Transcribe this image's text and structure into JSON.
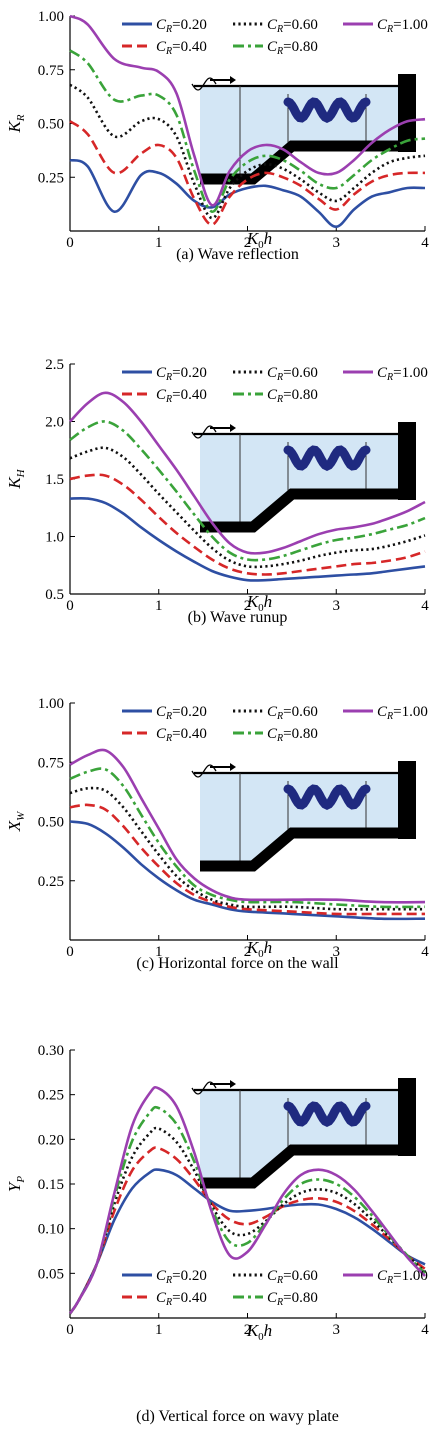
{
  "colors": {
    "s020": "#2e4fa3",
    "s040": "#d62728",
    "s060": "#111111",
    "s080": "#3aa33a",
    "s100": "#9b3fb0",
    "water": "#d3e6f5",
    "wave": "#1f2a80"
  },
  "chart_data": [
    {
      "type": "line",
      "caption": "(a) Wave reflection",
      "xlabel": "K₀h",
      "ylabel": "K_R",
      "xlim": [
        0,
        4
      ],
      "ylim": [
        0,
        1.0
      ],
      "xticks": [
        "0",
        "1",
        "2",
        "3",
        "4"
      ],
      "yticks": [
        "0.25",
        "0.50",
        "0.75",
        "1.00"
      ],
      "legend_position": "top",
      "series": [
        {
          "name": "C_R=0.20",
          "label": "=0.20",
          "style": "solid",
          "color": "#2e4fa3",
          "x": [
            0,
            0.2,
            0.5,
            0.8,
            1.0,
            1.2,
            1.4,
            1.6,
            1.8,
            2.0,
            2.2,
            2.4,
            2.6,
            2.8,
            3.0,
            3.2,
            3.4,
            3.6,
            3.8,
            4.0
          ],
          "y": [
            0.33,
            0.3,
            0.09,
            0.26,
            0.27,
            0.22,
            0.14,
            0.11,
            0.17,
            0.2,
            0.21,
            0.19,
            0.16,
            0.09,
            0.02,
            0.1,
            0.16,
            0.18,
            0.2,
            0.2
          ]
        },
        {
          "name": "C_R=0.40",
          "label": "=0.40",
          "style": "dash",
          "color": "#d62728",
          "x": [
            0,
            0.2,
            0.5,
            0.8,
            1.0,
            1.2,
            1.4,
            1.6,
            1.8,
            2.0,
            2.2,
            2.4,
            2.6,
            2.8,
            3.0,
            3.2,
            3.4,
            3.6,
            3.8,
            4.0
          ],
          "y": [
            0.51,
            0.45,
            0.27,
            0.36,
            0.4,
            0.34,
            0.15,
            0.03,
            0.16,
            0.24,
            0.27,
            0.25,
            0.21,
            0.15,
            0.1,
            0.17,
            0.23,
            0.26,
            0.27,
            0.27
          ]
        },
        {
          "name": "C_R=0.60",
          "label": "=0.60",
          "style": "dot",
          "color": "#111111",
          "x": [
            0,
            0.2,
            0.5,
            0.8,
            1.0,
            1.2,
            1.4,
            1.6,
            1.8,
            2.0,
            2.2,
            2.4,
            2.6,
            2.8,
            3.0,
            3.2,
            3.4,
            3.6,
            3.8,
            4.0
          ],
          "y": [
            0.68,
            0.62,
            0.44,
            0.51,
            0.52,
            0.44,
            0.22,
            0.06,
            0.2,
            0.28,
            0.31,
            0.29,
            0.24,
            0.18,
            0.14,
            0.2,
            0.27,
            0.32,
            0.34,
            0.35
          ]
        },
        {
          "name": "C_R=0.80",
          "label": "=0.80",
          "style": "dashdot",
          "color": "#3aa33a",
          "x": [
            0,
            0.2,
            0.5,
            0.8,
            1.0,
            1.2,
            1.4,
            1.6,
            1.8,
            2.0,
            2.2,
            2.4,
            2.6,
            2.8,
            3.0,
            3.2,
            3.4,
            3.6,
            3.8,
            4.0
          ],
          "y": [
            0.84,
            0.78,
            0.61,
            0.63,
            0.63,
            0.54,
            0.28,
            0.09,
            0.24,
            0.32,
            0.35,
            0.33,
            0.28,
            0.22,
            0.2,
            0.26,
            0.33,
            0.38,
            0.42,
            0.43
          ]
        },
        {
          "name": "C_R=1.00",
          "label": "=1.00",
          "style": "solid",
          "color": "#9b3fb0",
          "x": [
            0,
            0.2,
            0.5,
            0.8,
            1.0,
            1.2,
            1.4,
            1.6,
            1.8,
            2.0,
            2.2,
            2.4,
            2.6,
            2.8,
            3.0,
            3.2,
            3.4,
            3.6,
            3.8,
            4.0
          ],
          "y": [
            1.0,
            0.96,
            0.8,
            0.76,
            0.74,
            0.64,
            0.35,
            0.12,
            0.28,
            0.37,
            0.4,
            0.38,
            0.32,
            0.27,
            0.27,
            0.33,
            0.41,
            0.47,
            0.51,
            0.52
          ]
        }
      ]
    },
    {
      "type": "line",
      "caption": "(b) Wave runup",
      "xlabel": "K₀h",
      "ylabel": "K_H",
      "xlim": [
        0,
        4
      ],
      "ylim": [
        0.5,
        2.5
      ],
      "xticks": [
        "0",
        "1",
        "2",
        "3",
        "4"
      ],
      "yticks": [
        "0.5",
        "1.0",
        "1.5",
        "2.0",
        "2.5"
      ],
      "legend_position": "top",
      "series": [
        {
          "name": "C_R=0.20",
          "label": "=0.20",
          "style": "solid",
          "color": "#2e4fa3",
          "x": [
            0,
            0.2,
            0.4,
            0.6,
            0.8,
            1.0,
            1.2,
            1.4,
            1.6,
            1.8,
            2.0,
            2.2,
            2.4,
            2.6,
            2.8,
            3.0,
            3.2,
            3.4,
            3.6,
            3.8,
            4.0
          ],
          "y": [
            1.33,
            1.33,
            1.29,
            1.2,
            1.08,
            0.97,
            0.87,
            0.78,
            0.7,
            0.65,
            0.62,
            0.62,
            0.63,
            0.64,
            0.65,
            0.66,
            0.67,
            0.68,
            0.7,
            0.72,
            0.74
          ]
        },
        {
          "name": "C_R=0.40",
          "label": "=0.40",
          "style": "dash",
          "color": "#d62728",
          "x": [
            0,
            0.2,
            0.4,
            0.6,
            0.8,
            1.0,
            1.2,
            1.4,
            1.6,
            1.8,
            2.0,
            2.2,
            2.4,
            2.6,
            2.8,
            3.0,
            3.2,
            3.4,
            3.6,
            3.8,
            4.0
          ],
          "y": [
            1.5,
            1.53,
            1.53,
            1.45,
            1.32,
            1.17,
            1.03,
            0.91,
            0.8,
            0.72,
            0.68,
            0.67,
            0.68,
            0.7,
            0.72,
            0.74,
            0.76,
            0.77,
            0.79,
            0.82,
            0.87
          ]
        },
        {
          "name": "C_R=0.60",
          "label": "=0.60",
          "style": "dot",
          "color": "#111111",
          "x": [
            0,
            0.2,
            0.4,
            0.6,
            0.8,
            1.0,
            1.2,
            1.4,
            1.6,
            1.8,
            2.0,
            2.2,
            2.4,
            2.6,
            2.8,
            3.0,
            3.2,
            3.4,
            3.6,
            3.8,
            4.0
          ],
          "y": [
            1.68,
            1.74,
            1.77,
            1.69,
            1.54,
            1.37,
            1.21,
            1.05,
            0.9,
            0.79,
            0.74,
            0.74,
            0.76,
            0.79,
            0.83,
            0.86,
            0.88,
            0.89,
            0.92,
            0.96,
            1.01
          ]
        },
        {
          "name": "C_R=0.80",
          "label": "=0.80",
          "style": "dashdot",
          "color": "#3aa33a",
          "x": [
            0,
            0.2,
            0.4,
            0.6,
            0.8,
            1.0,
            1.2,
            1.4,
            1.6,
            1.8,
            2.0,
            2.2,
            2.4,
            2.6,
            2.8,
            3.0,
            3.2,
            3.4,
            3.6,
            3.8,
            4.0
          ],
          "y": [
            1.84,
            1.95,
            2.0,
            1.92,
            1.76,
            1.58,
            1.39,
            1.19,
            1.0,
            0.86,
            0.8,
            0.8,
            0.83,
            0.88,
            0.93,
            0.97,
            0.99,
            1.02,
            1.06,
            1.1,
            1.16
          ]
        },
        {
          "name": "C_R=1.00",
          "label": "=1.00",
          "style": "solid",
          "color": "#9b3fb0",
          "x": [
            0,
            0.2,
            0.4,
            0.6,
            0.8,
            1.0,
            1.2,
            1.4,
            1.6,
            1.8,
            2.0,
            2.2,
            2.4,
            2.6,
            2.8,
            3.0,
            3.2,
            3.4,
            3.6,
            3.8,
            4.0
          ],
          "y": [
            2.0,
            2.16,
            2.25,
            2.17,
            2.0,
            1.79,
            1.58,
            1.35,
            1.12,
            0.94,
            0.86,
            0.86,
            0.9,
            0.96,
            1.02,
            1.06,
            1.08,
            1.11,
            1.16,
            1.22,
            1.3
          ]
        }
      ]
    },
    {
      "type": "line",
      "caption": "(c) Horizontal force on the wall",
      "xlabel": "K₀h",
      "ylabel": "X_W",
      "xlim": [
        0,
        4
      ],
      "ylim": [
        0,
        1.0
      ],
      "xticks": [
        "0",
        "1",
        "2",
        "3",
        "4"
      ],
      "yticks": [
        "0.25",
        "0.50",
        "0.75",
        "1.00"
      ],
      "legend_position": "top",
      "series": [
        {
          "name": "C_R=0.20",
          "label": "=0.20",
          "style": "solid",
          "color": "#2e4fa3",
          "x": [
            0,
            0.2,
            0.4,
            0.6,
            0.8,
            1.0,
            1.2,
            1.4,
            1.6,
            1.8,
            2.0,
            2.5,
            3.0,
            3.5,
            4.0
          ],
          "y": [
            0.5,
            0.49,
            0.45,
            0.39,
            0.32,
            0.26,
            0.21,
            0.17,
            0.15,
            0.13,
            0.12,
            0.11,
            0.1,
            0.09,
            0.09
          ]
        },
        {
          "name": "C_R=0.40",
          "label": "=0.40",
          "style": "dash",
          "color": "#d62728",
          "x": [
            0,
            0.2,
            0.4,
            0.6,
            0.8,
            1.0,
            1.2,
            1.4,
            1.6,
            1.8,
            2.0,
            2.5,
            3.0,
            3.5,
            4.0
          ],
          "y": [
            0.56,
            0.57,
            0.55,
            0.48,
            0.39,
            0.31,
            0.24,
            0.19,
            0.16,
            0.14,
            0.13,
            0.12,
            0.11,
            0.11,
            0.11
          ]
        },
        {
          "name": "C_R=0.60",
          "label": "=0.60",
          "style": "dot",
          "color": "#111111",
          "x": [
            0,
            0.2,
            0.4,
            0.6,
            0.8,
            1.0,
            1.2,
            1.4,
            1.6,
            1.8,
            2.0,
            2.5,
            3.0,
            3.5,
            4.0
          ],
          "y": [
            0.62,
            0.64,
            0.63,
            0.56,
            0.46,
            0.36,
            0.27,
            0.21,
            0.17,
            0.15,
            0.14,
            0.14,
            0.13,
            0.13,
            0.13
          ]
        },
        {
          "name": "C_R=0.80",
          "label": "=0.80",
          "style": "dashdot",
          "color": "#3aa33a",
          "x": [
            0,
            0.2,
            0.4,
            0.6,
            0.8,
            1.0,
            1.2,
            1.4,
            1.6,
            1.8,
            2.0,
            2.5,
            3.0,
            3.5,
            4.0
          ],
          "y": [
            0.68,
            0.71,
            0.72,
            0.65,
            0.53,
            0.41,
            0.31,
            0.23,
            0.19,
            0.17,
            0.16,
            0.16,
            0.15,
            0.14,
            0.14
          ]
        },
        {
          "name": "C_R=1.00",
          "label": "=1.00",
          "style": "solid",
          "color": "#9b3fb0",
          "x": [
            0,
            0.2,
            0.4,
            0.6,
            0.8,
            1.0,
            1.2,
            1.4,
            1.6,
            1.8,
            2.0,
            2.5,
            3.0,
            3.5,
            4.0
          ],
          "y": [
            0.74,
            0.78,
            0.8,
            0.73,
            0.6,
            0.47,
            0.34,
            0.26,
            0.21,
            0.18,
            0.17,
            0.17,
            0.17,
            0.16,
            0.16
          ]
        }
      ]
    },
    {
      "type": "line",
      "caption": "(d) Vertical force on wavy plate",
      "xlabel": "K₀h",
      "ylabel": "Y_P",
      "xlim": [
        0,
        4
      ],
      "ylim": [
        0,
        0.3
      ],
      "xticks": [
        "0",
        "1",
        "2",
        "3",
        "4"
      ],
      "yticks": [
        "0.05",
        "0.10",
        "0.15",
        "0.20",
        "0.25",
        "0.30"
      ],
      "legend_position": "bottom",
      "series": [
        {
          "name": "C_R=0.20",
          "label": "=0.20",
          "style": "solid",
          "color": "#2e4fa3",
          "x": [
            0,
            0.1,
            0.3,
            0.5,
            0.7,
            0.9,
            1.0,
            1.2,
            1.4,
            1.6,
            1.8,
            2.0,
            2.2,
            2.4,
            2.6,
            2.8,
            3.0,
            3.2,
            3.4,
            3.6,
            3.8,
            4.0
          ],
          "y": [
            0.005,
            0.02,
            0.06,
            0.11,
            0.145,
            0.163,
            0.166,
            0.16,
            0.145,
            0.13,
            0.12,
            0.12,
            0.122,
            0.125,
            0.127,
            0.127,
            0.122,
            0.113,
            0.1,
            0.085,
            0.07,
            0.06
          ]
        },
        {
          "name": "C_R=0.40",
          "label": "=0.40",
          "style": "dash",
          "color": "#d62728",
          "x": [
            0,
            0.1,
            0.3,
            0.5,
            0.7,
            0.9,
            1.0,
            1.2,
            1.4,
            1.6,
            1.8,
            2.0,
            2.2,
            2.4,
            2.6,
            2.8,
            3.0,
            3.2,
            3.4,
            3.6,
            3.8,
            4.0
          ],
          "y": [
            0.005,
            0.02,
            0.06,
            0.12,
            0.165,
            0.187,
            0.19,
            0.178,
            0.155,
            0.128,
            0.11,
            0.105,
            0.113,
            0.125,
            0.132,
            0.134,
            0.13,
            0.12,
            0.105,
            0.088,
            0.07,
            0.055
          ]
        },
        {
          "name": "C_R=0.60",
          "label": "=0.60",
          "style": "dot",
          "color": "#111111",
          "x": [
            0,
            0.1,
            0.3,
            0.5,
            0.7,
            0.9,
            1.0,
            1.2,
            1.4,
            1.6,
            1.8,
            2.0,
            2.2,
            2.4,
            2.6,
            2.8,
            3.0,
            3.2,
            3.4,
            3.6,
            3.8,
            4.0
          ],
          "y": [
            0.005,
            0.02,
            0.06,
            0.128,
            0.18,
            0.207,
            0.212,
            0.197,
            0.165,
            0.125,
            0.097,
            0.094,
            0.108,
            0.127,
            0.14,
            0.144,
            0.14,
            0.128,
            0.11,
            0.09,
            0.07,
            0.052
          ]
        },
        {
          "name": "C_R=0.80",
          "label": "=0.80",
          "style": "dashdot",
          "color": "#3aa33a",
          "x": [
            0,
            0.1,
            0.3,
            0.5,
            0.7,
            0.9,
            1.0,
            1.2,
            1.4,
            1.6,
            1.8,
            2.0,
            2.2,
            2.4,
            2.6,
            2.8,
            3.0,
            3.2,
            3.4,
            3.6,
            3.8,
            4.0
          ],
          "y": [
            0.005,
            0.02,
            0.06,
            0.135,
            0.198,
            0.23,
            0.235,
            0.217,
            0.175,
            0.122,
            0.085,
            0.084,
            0.106,
            0.132,
            0.15,
            0.155,
            0.15,
            0.136,
            0.115,
            0.092,
            0.07,
            0.05
          ]
        },
        {
          "name": "C_R=1.00",
          "label": "=1.00",
          "style": "solid",
          "color": "#9b3fb0",
          "x": [
            0,
            0.1,
            0.3,
            0.5,
            0.7,
            0.9,
            1.0,
            1.2,
            1.4,
            1.6,
            1.8,
            2.0,
            2.2,
            2.4,
            2.6,
            2.8,
            3.0,
            3.2,
            3.4,
            3.6,
            3.8,
            4.0
          ],
          "y": [
            0.005,
            0.02,
            0.06,
            0.14,
            0.215,
            0.252,
            0.257,
            0.237,
            0.185,
            0.118,
            0.07,
            0.074,
            0.104,
            0.138,
            0.16,
            0.166,
            0.16,
            0.144,
            0.12,
            0.094,
            0.068,
            0.047
          ]
        }
      ]
    }
  ]
}
